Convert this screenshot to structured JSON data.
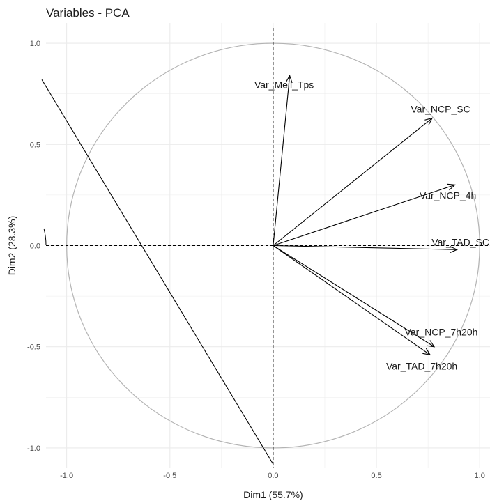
{
  "chart_data": {
    "type": "scatter",
    "title": "Variables - PCA",
    "xlabel": "Dim1 (55.7%)",
    "ylabel": "Dim2 (28.3%)",
    "xlim": [
      -1.1,
      1.05
    ],
    "ylim": [
      -1.1,
      1.1
    ],
    "xticks": [
      {
        "value": -1.0,
        "label": "-1.0"
      },
      {
        "value": -0.5,
        "label": "-0.5"
      },
      {
        "value": 0.0,
        "label": "0.0"
      },
      {
        "value": 0.5,
        "label": "0.5"
      },
      {
        "value": 1.0,
        "label": "1.0"
      }
    ],
    "yticks": [
      {
        "value": 1.0,
        "label": "1.0"
      },
      {
        "value": 0.5,
        "label": "0.5"
      },
      {
        "value": 0.0,
        "label": "0.0"
      },
      {
        "value": -0.5,
        "label": "-0.5"
      },
      {
        "value": -1.0,
        "label": "-1.0"
      }
    ],
    "grid": true,
    "background": "#ffffff",
    "grid_color": "#ebebeb",
    "circle_color": "#b3b3b3",
    "arrow_color": "#000000",
    "variables": [
      {
        "name": "Var_Meil_Tps",
        "x": 0.08,
        "y": 0.84
      },
      {
        "name": "Var_NCP_SC",
        "x": 0.77,
        "y": 0.63
      },
      {
        "name": "Var_NCP_4h",
        "x": 0.88,
        "y": 0.3
      },
      {
        "name": "Var_TAD_SC",
        "x": 0.89,
        "y": -0.02
      },
      {
        "name": "Var_NCP_7h20h",
        "x": 0.78,
        "y": -0.5
      },
      {
        "name": "Var_TAD_7h20h",
        "x": 0.76,
        "y": -0.54
      }
    ],
    "extra_line": {
      "x1": -1.12,
      "y1": 0.82,
      "x2": 0.0,
      "y2": -1.08
    },
    "circle_radius": 1.0
  }
}
